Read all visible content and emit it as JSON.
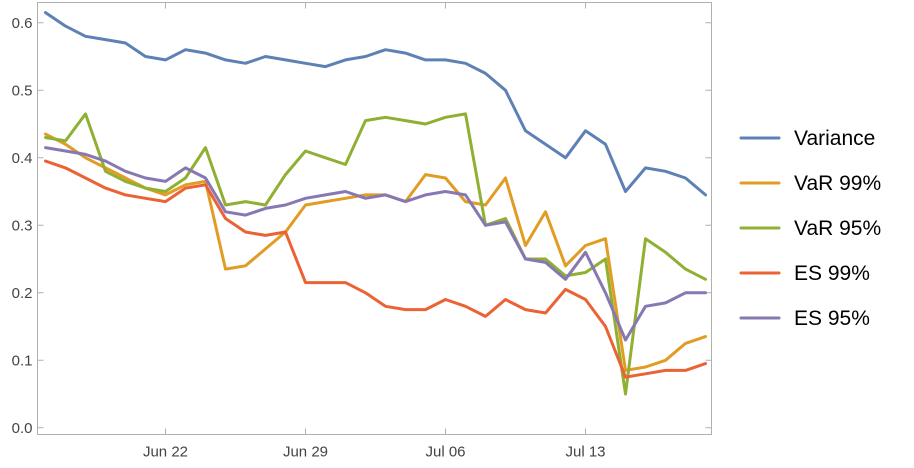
{
  "chart_data": {
    "type": "line",
    "title": "",
    "xlabel": "",
    "ylabel": "",
    "x_start": "2020-06-16",
    "x_end": "2020-07-19",
    "x_ticks": [
      {
        "date": "2020-06-22",
        "label": "Jun 22"
      },
      {
        "date": "2020-06-29",
        "label": "Jun 29"
      },
      {
        "date": "2020-07-06",
        "label": "Jul 06"
      },
      {
        "date": "2020-07-13",
        "label": "Jul 13"
      }
    ],
    "ylim": [
      -0.01,
      0.63
    ],
    "y_ticks": [
      0.0,
      0.1,
      0.2,
      0.3,
      0.4,
      0.5,
      0.6
    ],
    "y_tick_labels": [
      "0.0",
      "0.1",
      "0.2",
      "0.3",
      "0.4",
      "0.5",
      "0.6"
    ],
    "grid": false,
    "legend": "right",
    "series": [
      {
        "name": "Variance",
        "color": "#5E81B5",
        "points": [
          [
            "2020-06-16",
            0.615
          ],
          [
            "2020-06-17",
            0.595
          ],
          [
            "2020-06-18",
            0.58
          ],
          [
            "2020-06-19",
            0.575
          ],
          [
            "2020-06-20",
            0.57
          ],
          [
            "2020-06-21",
            0.55
          ],
          [
            "2020-06-22",
            0.545
          ],
          [
            "2020-06-23",
            0.56
          ],
          [
            "2020-06-24",
            0.555
          ],
          [
            "2020-06-25",
            0.545
          ],
          [
            "2020-06-26",
            0.54
          ],
          [
            "2020-06-27",
            0.55
          ],
          [
            "2020-06-28",
            0.545
          ],
          [
            "2020-06-29",
            0.54
          ],
          [
            "2020-06-30",
            0.535
          ],
          [
            "2020-07-01",
            0.545
          ],
          [
            "2020-07-02",
            0.55
          ],
          [
            "2020-07-03",
            0.56
          ],
          [
            "2020-07-04",
            0.555
          ],
          [
            "2020-07-05",
            0.545
          ],
          [
            "2020-07-06",
            0.545
          ],
          [
            "2020-07-07",
            0.54
          ],
          [
            "2020-07-08",
            0.525
          ],
          [
            "2020-07-09",
            0.5
          ],
          [
            "2020-07-10",
            0.44
          ],
          [
            "2020-07-11",
            0.42
          ],
          [
            "2020-07-12",
            0.4
          ],
          [
            "2020-07-13",
            0.44
          ],
          [
            "2020-07-14",
            0.42
          ],
          [
            "2020-07-15",
            0.35
          ],
          [
            "2020-07-16",
            0.385
          ],
          [
            "2020-07-17",
            0.38
          ],
          [
            "2020-07-18",
            0.37
          ],
          [
            "2020-07-19",
            0.345
          ]
        ]
      },
      {
        "name": "VaR 99%",
        "color": "#E19C24",
        "points": [
          [
            "2020-06-16",
            0.435
          ],
          [
            "2020-06-17",
            0.42
          ],
          [
            "2020-06-18",
            0.4
          ],
          [
            "2020-06-19",
            0.385
          ],
          [
            "2020-06-20",
            0.37
          ],
          [
            "2020-06-21",
            0.355
          ],
          [
            "2020-06-22",
            0.345
          ],
          [
            "2020-06-23",
            0.36
          ],
          [
            "2020-06-24",
            0.365
          ],
          [
            "2020-06-25",
            0.235
          ],
          [
            "2020-06-26",
            0.24
          ],
          [
            "2020-06-27",
            0.265
          ],
          [
            "2020-06-28",
            0.29
          ],
          [
            "2020-06-29",
            0.33
          ],
          [
            "2020-06-30",
            0.335
          ],
          [
            "2020-07-01",
            0.34
          ],
          [
            "2020-07-02",
            0.345
          ],
          [
            "2020-07-03",
            0.345
          ],
          [
            "2020-07-04",
            0.335
          ],
          [
            "2020-07-05",
            0.375
          ],
          [
            "2020-07-06",
            0.37
          ],
          [
            "2020-07-07",
            0.335
          ],
          [
            "2020-07-08",
            0.33
          ],
          [
            "2020-07-09",
            0.37
          ],
          [
            "2020-07-10",
            0.27
          ],
          [
            "2020-07-11",
            0.32
          ],
          [
            "2020-07-12",
            0.24
          ],
          [
            "2020-07-13",
            0.27
          ],
          [
            "2020-07-14",
            0.28
          ],
          [
            "2020-07-15",
            0.085
          ],
          [
            "2020-07-16",
            0.09
          ],
          [
            "2020-07-17",
            0.1
          ],
          [
            "2020-07-18",
            0.125
          ],
          [
            "2020-07-19",
            0.135
          ]
        ]
      },
      {
        "name": "VaR 95%",
        "color": "#8FB032",
        "points": [
          [
            "2020-06-16",
            0.43
          ],
          [
            "2020-06-17",
            0.425
          ],
          [
            "2020-06-18",
            0.465
          ],
          [
            "2020-06-19",
            0.38
          ],
          [
            "2020-06-20",
            0.365
          ],
          [
            "2020-06-21",
            0.355
          ],
          [
            "2020-06-22",
            0.35
          ],
          [
            "2020-06-23",
            0.37
          ],
          [
            "2020-06-24",
            0.415
          ],
          [
            "2020-06-25",
            0.33
          ],
          [
            "2020-06-26",
            0.335
          ],
          [
            "2020-06-27",
            0.33
          ],
          [
            "2020-06-28",
            0.375
          ],
          [
            "2020-06-29",
            0.41
          ],
          [
            "2020-06-30",
            0.4
          ],
          [
            "2020-07-01",
            0.39
          ],
          [
            "2020-07-02",
            0.455
          ],
          [
            "2020-07-03",
            0.46
          ],
          [
            "2020-07-04",
            0.455
          ],
          [
            "2020-07-05",
            0.45
          ],
          [
            "2020-07-06",
            0.46
          ],
          [
            "2020-07-07",
            0.465
          ],
          [
            "2020-07-08",
            0.3
          ],
          [
            "2020-07-09",
            0.31
          ],
          [
            "2020-07-10",
            0.25
          ],
          [
            "2020-07-11",
            0.25
          ],
          [
            "2020-07-12",
            0.225
          ],
          [
            "2020-07-13",
            0.23
          ],
          [
            "2020-07-14",
            0.25
          ],
          [
            "2020-07-15",
            0.05
          ],
          [
            "2020-07-16",
            0.28
          ],
          [
            "2020-07-17",
            0.26
          ],
          [
            "2020-07-18",
            0.235
          ],
          [
            "2020-07-19",
            0.22
          ]
        ]
      },
      {
        "name": "ES 99%",
        "color": "#EB6235",
        "points": [
          [
            "2020-06-16",
            0.395
          ],
          [
            "2020-06-17",
            0.385
          ],
          [
            "2020-06-18",
            0.37
          ],
          [
            "2020-06-19",
            0.355
          ],
          [
            "2020-06-20",
            0.345
          ],
          [
            "2020-06-21",
            0.34
          ],
          [
            "2020-06-22",
            0.335
          ],
          [
            "2020-06-23",
            0.355
          ],
          [
            "2020-06-24",
            0.36
          ],
          [
            "2020-06-25",
            0.31
          ],
          [
            "2020-06-26",
            0.29
          ],
          [
            "2020-06-27",
            0.285
          ],
          [
            "2020-06-28",
            0.29
          ],
          [
            "2020-06-29",
            0.215
          ],
          [
            "2020-06-30",
            0.215
          ],
          [
            "2020-07-01",
            0.215
          ],
          [
            "2020-07-02",
            0.2
          ],
          [
            "2020-07-03",
            0.18
          ],
          [
            "2020-07-04",
            0.175
          ],
          [
            "2020-07-05",
            0.175
          ],
          [
            "2020-07-06",
            0.19
          ],
          [
            "2020-07-07",
            0.18
          ],
          [
            "2020-07-08",
            0.165
          ],
          [
            "2020-07-09",
            0.19
          ],
          [
            "2020-07-10",
            0.175
          ],
          [
            "2020-07-11",
            0.17
          ],
          [
            "2020-07-12",
            0.205
          ],
          [
            "2020-07-13",
            0.19
          ],
          [
            "2020-07-14",
            0.15
          ],
          [
            "2020-07-15",
            0.075
          ],
          [
            "2020-07-16",
            0.08
          ],
          [
            "2020-07-17",
            0.085
          ],
          [
            "2020-07-18",
            0.085
          ],
          [
            "2020-07-19",
            0.095
          ]
        ]
      },
      {
        "name": "ES 95%",
        "color": "#8778B3",
        "points": [
          [
            "2020-06-16",
            0.415
          ],
          [
            "2020-06-17",
            0.41
          ],
          [
            "2020-06-18",
            0.405
          ],
          [
            "2020-06-19",
            0.395
          ],
          [
            "2020-06-20",
            0.38
          ],
          [
            "2020-06-21",
            0.37
          ],
          [
            "2020-06-22",
            0.365
          ],
          [
            "2020-06-23",
            0.385
          ],
          [
            "2020-06-24",
            0.37
          ],
          [
            "2020-06-25",
            0.32
          ],
          [
            "2020-06-26",
            0.315
          ],
          [
            "2020-06-27",
            0.325
          ],
          [
            "2020-06-28",
            0.33
          ],
          [
            "2020-06-29",
            0.34
          ],
          [
            "2020-06-30",
            0.345
          ],
          [
            "2020-07-01",
            0.35
          ],
          [
            "2020-07-02",
            0.34
          ],
          [
            "2020-07-03",
            0.345
          ],
          [
            "2020-07-04",
            0.335
          ],
          [
            "2020-07-05",
            0.345
          ],
          [
            "2020-07-06",
            0.35
          ],
          [
            "2020-07-07",
            0.345
          ],
          [
            "2020-07-08",
            0.3
          ],
          [
            "2020-07-09",
            0.305
          ],
          [
            "2020-07-10",
            0.25
          ],
          [
            "2020-07-11",
            0.245
          ],
          [
            "2020-07-12",
            0.22
          ],
          [
            "2020-07-13",
            0.26
          ],
          [
            "2020-07-14",
            0.2
          ],
          [
            "2020-07-15",
            0.13
          ],
          [
            "2020-07-16",
            0.18
          ],
          [
            "2020-07-17",
            0.185
          ],
          [
            "2020-07-18",
            0.2
          ],
          [
            "2020-07-19",
            0.2
          ]
        ]
      }
    ]
  }
}
